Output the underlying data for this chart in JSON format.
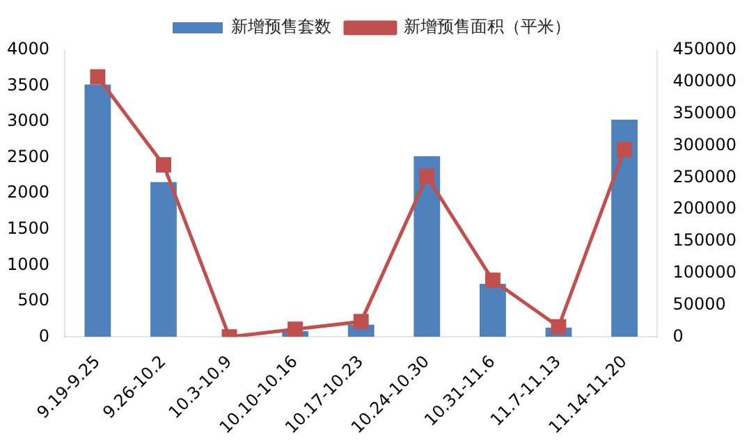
{
  "chart_data": {
    "type": "bar",
    "categories": [
      "9.19-9.25",
      "9.26-10.2",
      "10.3-10.9",
      "10.10-10.16",
      "10.17-10.23",
      "10.24-10.30",
      "10.31-11.6",
      "11.7-11.13",
      "11.14-11.20"
    ],
    "series": [
      {
        "name": "新增预售套数",
        "color": "#4f81bd",
        "values": [
          3520,
          2160,
          0,
          80,
          170,
          2520,
          740,
          130,
          3030
        ]
      },
      {
        "name": "新增预售面积（平米）",
        "type": "line",
        "axis": "y2",
        "color": "#c0504d",
        "marker": "square",
        "values": [
          408000,
          270000,
          0,
          12000,
          24000,
          252000,
          89000,
          16000,
          294000
        ]
      }
    ],
    "ylim": [
      0,
      4000
    ],
    "yticks": [
      0,
      500,
      1000,
      1500,
      2000,
      2500,
      3000,
      3500,
      4000
    ],
    "y2lim": [
      0,
      450000
    ],
    "y2ticks": [
      0,
      50000,
      100000,
      150000,
      200000,
      250000,
      300000,
      350000,
      400000,
      450000
    ],
    "grid": false,
    "legend": "top"
  }
}
